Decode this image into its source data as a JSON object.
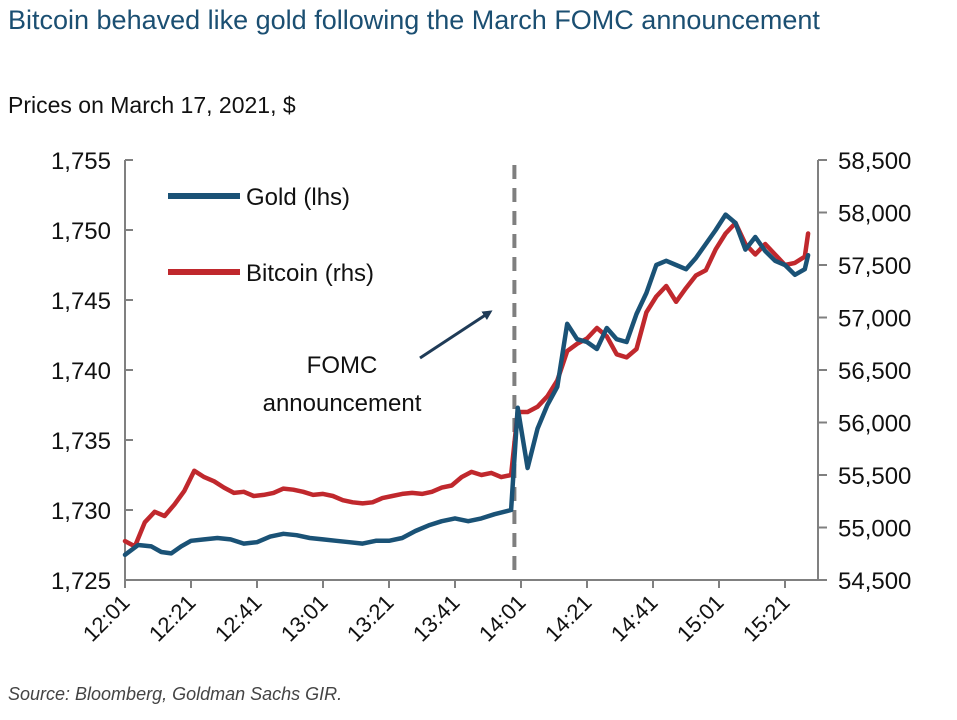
{
  "title": "Bitcoin behaved like gold following the March FOMC announcement",
  "subtitle": "Prices on March 17, 2021, $",
  "source": "Source: Bloomberg, Goldman Sachs GIR.",
  "colors": {
    "gold": "#1a5276",
    "bitcoin": "#c0282d",
    "axis": "#808080",
    "event_line": "#7f7f7f"
  },
  "chart_data": {
    "type": "line",
    "title": "Bitcoin behaved like gold following the March FOMC announcement",
    "subtitle": "Prices on March 17, 2021, $",
    "x_tick_labels": [
      "12:01",
      "12:21",
      "12:41",
      "13:01",
      "13:21",
      "13:41",
      "14:01",
      "14:21",
      "14:41",
      "15:01",
      "15:21"
    ],
    "xlim": [
      "12:01",
      "15:31"
    ],
    "y_left": {
      "ylim": [
        1725,
        1755
      ],
      "tick_values": [
        1725,
        1730,
        1735,
        1740,
        1745,
        1750,
        1755
      ],
      "tick_labels": [
        "1,725",
        "1,730",
        "1,735",
        "1,740",
        "1,745",
        "1,750",
        "1,755"
      ]
    },
    "y_right": {
      "ylim": [
        54500,
        58500
      ],
      "tick_values": [
        54500,
        55000,
        55500,
        56000,
        56500,
        57000,
        57500,
        58000,
        58500
      ],
      "tick_labels": [
        "54,500",
        "55,000",
        "55,500",
        "56,000",
        "56,500",
        "57,000",
        "57,500",
        "58,000",
        "58,500"
      ]
    },
    "legend_position": "top-left",
    "series": [
      {
        "name": "Gold (lhs)",
        "axis": "left",
        "color": "#1a5276",
        "points": [
          [
            "12:01",
            1726.8
          ],
          [
            "12:05",
            1727.5
          ],
          [
            "12:09",
            1727.4
          ],
          [
            "12:12",
            1727.0
          ],
          [
            "12:15",
            1726.9
          ],
          [
            "12:18",
            1727.4
          ],
          [
            "12:21",
            1727.8
          ],
          [
            "12:25",
            1727.9
          ],
          [
            "12:29",
            1728.0
          ],
          [
            "12:33",
            1727.9
          ],
          [
            "12:37",
            1727.6
          ],
          [
            "12:41",
            1727.7
          ],
          [
            "12:45",
            1728.1
          ],
          [
            "12:49",
            1728.3
          ],
          [
            "12:53",
            1728.2
          ],
          [
            "12:57",
            1728.0
          ],
          [
            "13:01",
            1727.9
          ],
          [
            "13:05",
            1727.8
          ],
          [
            "13:09",
            1727.7
          ],
          [
            "13:13",
            1727.6
          ],
          [
            "13:17",
            1727.8
          ],
          [
            "13:21",
            1727.8
          ],
          [
            "13:25",
            1728.0
          ],
          [
            "13:29",
            1728.5
          ],
          [
            "13:33",
            1728.9
          ],
          [
            "13:37",
            1729.2
          ],
          [
            "13:41",
            1729.4
          ],
          [
            "13:45",
            1729.2
          ],
          [
            "13:49",
            1729.4
          ],
          [
            "13:53",
            1729.7
          ],
          [
            "13:58",
            1730.0
          ],
          [
            "14:00",
            1737.3
          ],
          [
            "14:03",
            1733.0
          ],
          [
            "14:06",
            1735.8
          ],
          [
            "14:09",
            1737.5
          ],
          [
            "14:12",
            1738.8
          ],
          [
            "14:15",
            1743.3
          ],
          [
            "14:18",
            1742.2
          ],
          [
            "14:21",
            1742.0
          ],
          [
            "14:24",
            1741.5
          ],
          [
            "14:27",
            1743.0
          ],
          [
            "14:30",
            1742.2
          ],
          [
            "14:33",
            1742.0
          ],
          [
            "14:36",
            1744.0
          ],
          [
            "14:39",
            1745.5
          ],
          [
            "14:42",
            1747.5
          ],
          [
            "14:45",
            1747.8
          ],
          [
            "14:48",
            1747.5
          ],
          [
            "14:51",
            1747.2
          ],
          [
            "14:54",
            1748.0
          ],
          [
            "14:57",
            1749.0
          ],
          [
            "15:00",
            1750.0
          ],
          [
            "15:03",
            1751.1
          ],
          [
            "15:06",
            1750.5
          ],
          [
            "15:09",
            1748.6
          ],
          [
            "15:12",
            1749.5
          ],
          [
            "15:15",
            1748.5
          ],
          [
            "15:18",
            1747.8
          ],
          [
            "15:21",
            1747.5
          ],
          [
            "15:24",
            1746.8
          ],
          [
            "15:27",
            1747.2
          ],
          [
            "15:28",
            1748.2
          ]
        ]
      },
      {
        "name": "Bitcoin (rhs)",
        "axis": "right",
        "color": "#c0282d",
        "points": [
          [
            "12:01",
            54870
          ],
          [
            "12:04",
            54820
          ],
          [
            "12:07",
            55050
          ],
          [
            "12:10",
            55150
          ],
          [
            "12:13",
            55110
          ],
          [
            "12:16",
            55220
          ],
          [
            "12:19",
            55350
          ],
          [
            "12:22",
            55540
          ],
          [
            "12:25",
            55480
          ],
          [
            "12:28",
            55440
          ],
          [
            "12:31",
            55380
          ],
          [
            "12:34",
            55330
          ],
          [
            "12:37",
            55340
          ],
          [
            "12:40",
            55300
          ],
          [
            "12:43",
            55310
          ],
          [
            "12:46",
            55330
          ],
          [
            "12:49",
            55370
          ],
          [
            "12:52",
            55360
          ],
          [
            "12:55",
            55340
          ],
          [
            "12:58",
            55310
          ],
          [
            "13:01",
            55320
          ],
          [
            "13:04",
            55300
          ],
          [
            "13:07",
            55260
          ],
          [
            "13:10",
            55240
          ],
          [
            "13:13",
            55230
          ],
          [
            "13:16",
            55240
          ],
          [
            "13:19",
            55280
          ],
          [
            "13:22",
            55300
          ],
          [
            "13:25",
            55320
          ],
          [
            "13:28",
            55330
          ],
          [
            "13:31",
            55320
          ],
          [
            "13:34",
            55340
          ],
          [
            "13:37",
            55380
          ],
          [
            "13:40",
            55400
          ],
          [
            "13:43",
            55480
          ],
          [
            "13:46",
            55530
          ],
          [
            "13:49",
            55500
          ],
          [
            "13:52",
            55520
          ],
          [
            "13:55",
            55480
          ],
          [
            "13:58",
            55500
          ],
          [
            "14:00",
            56100
          ],
          [
            "14:03",
            56100
          ],
          [
            "14:06",
            56150
          ],
          [
            "14:09",
            56250
          ],
          [
            "14:12",
            56400
          ],
          [
            "14:15",
            56680
          ],
          [
            "14:18",
            56750
          ],
          [
            "14:21",
            56800
          ],
          [
            "14:24",
            56900
          ],
          [
            "14:27",
            56820
          ],
          [
            "14:30",
            56650
          ],
          [
            "14:33",
            56620
          ],
          [
            "14:36",
            56700
          ],
          [
            "14:39",
            57050
          ],
          [
            "14:42",
            57200
          ],
          [
            "14:45",
            57300
          ],
          [
            "14:48",
            57150
          ],
          [
            "14:51",
            57280
          ],
          [
            "14:54",
            57400
          ],
          [
            "14:57",
            57450
          ],
          [
            "15:00",
            57650
          ],
          [
            "15:03",
            57800
          ],
          [
            "15:06",
            57900
          ],
          [
            "15:09",
            57700
          ],
          [
            "15:12",
            57600
          ],
          [
            "15:15",
            57700
          ],
          [
            "15:18",
            57600
          ],
          [
            "15:21",
            57500
          ],
          [
            "15:24",
            57520
          ],
          [
            "15:27",
            57580
          ],
          [
            "15:28",
            57800
          ]
        ]
      }
    ],
    "annotations": [
      {
        "type": "vertical_dashed_line",
        "x": "13:59"
      },
      {
        "type": "text_with_arrow",
        "text_lines": [
          "FOMC",
          "announcement"
        ]
      }
    ]
  }
}
